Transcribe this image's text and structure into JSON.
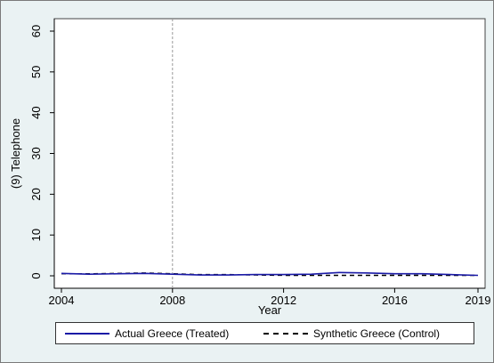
{
  "chart_data": {
    "type": "line",
    "title": "",
    "xlabel": "Year",
    "ylabel": "(9) Telephone",
    "xlim": [
      2004,
      2019
    ],
    "ylim": [
      0,
      60
    ],
    "x_ticks": [
      2004,
      2008,
      2012,
      2016,
      2019
    ],
    "y_ticks": [
      0,
      10,
      20,
      30,
      40,
      50,
      60
    ],
    "grid": false,
    "vertical_reference_line": {
      "x": 2008,
      "style": "dashed"
    },
    "legend_position": "bottom",
    "series": [
      {
        "name": "Actual Greece (Treated)",
        "style": "solid",
        "color": "#1a1aa6",
        "x": [
          2004,
          2005,
          2006,
          2007,
          2008,
          2009,
          2010,
          2011,
          2012,
          2013,
          2014,
          2015,
          2016,
          2017,
          2018,
          2019
        ],
        "values": [
          0.6,
          0.4,
          0.5,
          0.6,
          0.4,
          0.2,
          0.2,
          0.3,
          0.3,
          0.4,
          0.8,
          0.7,
          0.5,
          0.5,
          0.3,
          0.1
        ]
      },
      {
        "name": "Synthetic Greece (Control)",
        "style": "dashed",
        "color": "#000000",
        "x": [
          2004,
          2005,
          2006,
          2007,
          2008,
          2009,
          2010,
          2011,
          2012,
          2013,
          2014,
          2015,
          2016,
          2017,
          2018,
          2019
        ],
        "values": [
          0.5,
          0.5,
          0.6,
          0.7,
          0.5,
          0.3,
          0.3,
          0.2,
          0.1,
          0.1,
          0.1,
          0.1,
          0.1,
          0.1,
          0.1,
          0.1
        ]
      }
    ]
  }
}
